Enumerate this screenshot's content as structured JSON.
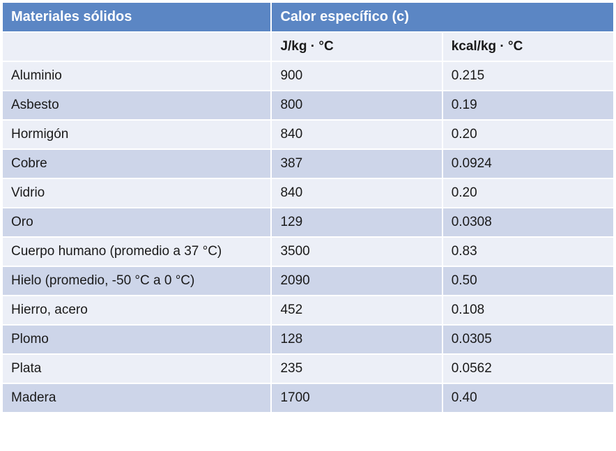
{
  "table": {
    "type": "table",
    "header_background": "#5b86c4",
    "header_text_color": "#ffffff",
    "row_even_background": "#eceff7",
    "row_odd_background": "#cdd5e9",
    "text_color": "#1a1a1a",
    "border_color": "#ffffff",
    "font_size_header": 20,
    "font_size_body": 19,
    "title_material": "Materiales sólidos",
    "title_specific_heat": "Calor específico (c)",
    "subheader_material": "",
    "subheader_jkg": "J/kg · °C",
    "subheader_kcal": "kcal/kg · °C",
    "columns": [
      "material",
      "jkg",
      "kcal"
    ],
    "column_widths_pct": [
      44,
      28,
      28
    ],
    "rows": [
      {
        "material": "Aluminio",
        "jkg": "900",
        "kcal": "0.215"
      },
      {
        "material": "Asbesto",
        "jkg": "800",
        "kcal": "0.19"
      },
      {
        "material": "Hormigón",
        "jkg": "840",
        "kcal": "0.20"
      },
      {
        "material": "Cobre",
        "jkg": "387",
        "kcal": "0.0924"
      },
      {
        "material": "Vidrio",
        "jkg": "840",
        "kcal": "0.20"
      },
      {
        "material": "Oro",
        "jkg": "129",
        "kcal": "0.0308"
      },
      {
        "material": "Cuerpo humano (promedio a 37 °C)",
        "jkg": "3500",
        "kcal": "0.83"
      },
      {
        "material": "Hielo (promedio, -50 °C a 0 °C)",
        "jkg": "2090",
        "kcal": "0.50"
      },
      {
        "material": "Hierro, acero",
        "jkg": "452",
        "kcal": "0.108"
      },
      {
        "material": "Plomo",
        "jkg": "128",
        "kcal": "0.0305"
      },
      {
        "material": "Plata",
        "jkg": "235",
        "kcal": "0.0562"
      },
      {
        "material": "Madera",
        "jkg": "1700",
        "kcal": "0.40"
      }
    ]
  }
}
